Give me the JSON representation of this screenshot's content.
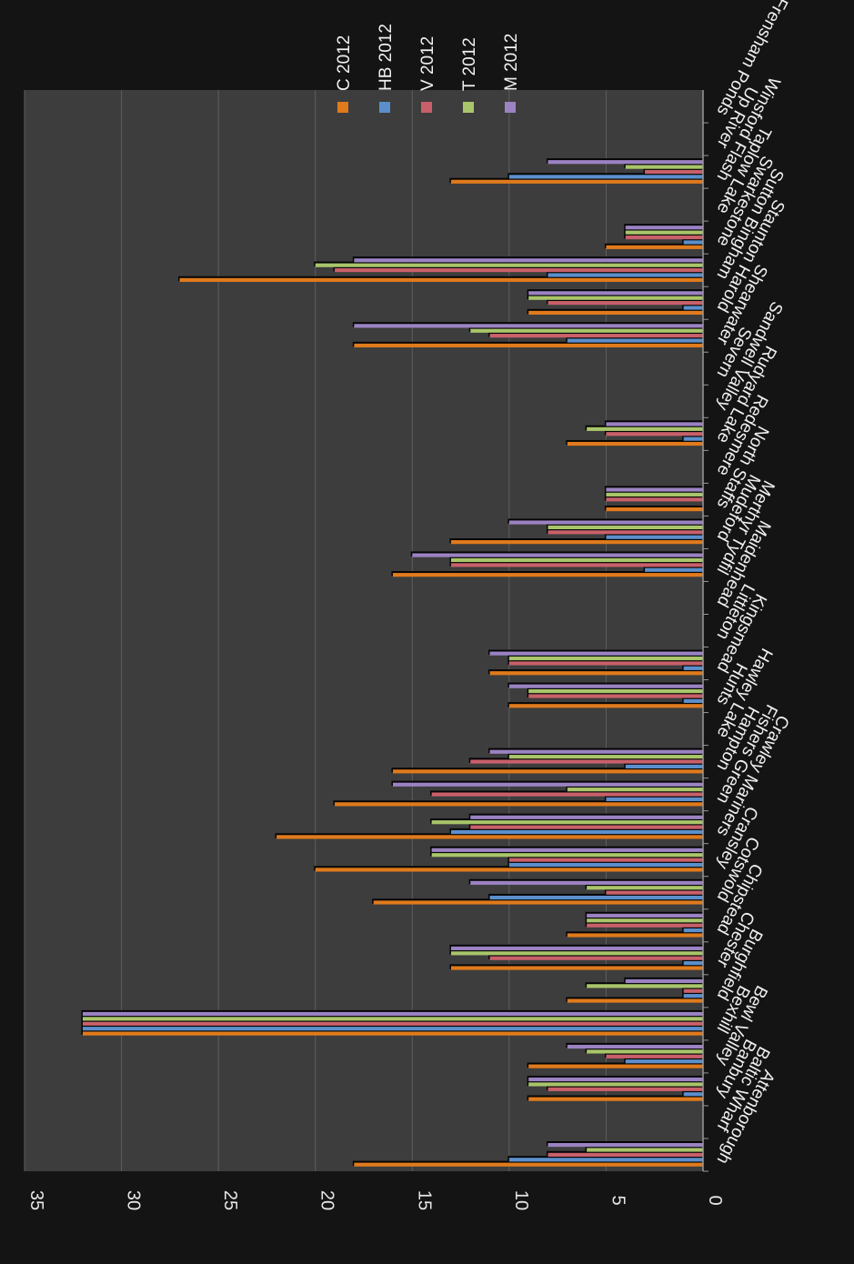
{
  "chart_data": {
    "type": "bar",
    "orientation": "horizontal",
    "ylim": [
      0,
      35
    ],
    "yticks": [
      "0",
      "5",
      "10",
      "15",
      "20",
      "25",
      "30",
      "35"
    ],
    "grid": true,
    "legend_position": "top-right",
    "categories": [
      "Attenborough",
      "Baltic Wharf",
      "Banbury",
      "Bewl Valley",
      "Bexhill",
      "Burghfield",
      "Chester",
      "Chipstead",
      "Cotswold",
      "Cransley",
      "Crawley Mariners",
      "Fishers Green",
      "Hampton",
      "Hawley Lake",
      "Hunts",
      "Kingsmead",
      "Littleton",
      "Maidenhead",
      "Merthyr Tydfil",
      "Mudeford",
      "North Staffs",
      "Redesmere",
      "Rudyard Lake",
      "Sandwell Valley",
      "Severn",
      "Shearwater",
      "Staunton Harold",
      "Sutton Bingham",
      "Swarkestone",
      "Taplow Lake",
      "Winsford Flash",
      "Up River",
      "Frensham Ponds"
    ],
    "series": [
      {
        "name": "C 2012",
        "color": "#e07a1c",
        "values": [
          18,
          0,
          9,
          9,
          32,
          7,
          13,
          7,
          17,
          20,
          22,
          19,
          16,
          0,
          10,
          11,
          0,
          0,
          16,
          13,
          5,
          0,
          7,
          0,
          0,
          18,
          9,
          27,
          5,
          0,
          13,
          0,
          0
        ]
      },
      {
        "name": "HB 2012",
        "color": "#5b8fcc",
        "values": [
          10,
          0,
          1,
          4,
          32,
          1,
          1,
          1,
          11,
          10,
          13,
          5,
          4,
          0,
          1,
          1,
          0,
          0,
          3,
          5,
          0,
          0,
          1,
          0,
          0,
          7,
          1,
          8,
          1,
          0,
          10,
          0,
          0
        ]
      },
      {
        "name": "V 2012",
        "color": "#c8606a",
        "values": [
          8,
          0,
          8,
          5,
          32,
          1,
          11,
          6,
          5,
          10,
          12,
          14,
          12,
          0,
          9,
          10,
          0,
          0,
          13,
          8,
          5,
          0,
          5,
          0,
          0,
          11,
          8,
          19,
          4,
          0,
          3,
          0,
          0
        ]
      },
      {
        "name": "T 2012",
        "color": "#a9c56a",
        "values": [
          6,
          0,
          9,
          6,
          32,
          6,
          13,
          6,
          6,
          14,
          14,
          7,
          10,
          0,
          9,
          10,
          0,
          0,
          13,
          8,
          5,
          0,
          6,
          0,
          0,
          12,
          9,
          20,
          4,
          0,
          4,
          0,
          0
        ]
      },
      {
        "name": "M 2012",
        "color": "#9b82c2",
        "values": [
          8,
          0,
          9,
          7,
          32,
          4,
          13,
          6,
          12,
          14,
          12,
          16,
          11,
          0,
          10,
          11,
          0,
          0,
          15,
          10,
          5,
          0,
          5,
          0,
          0,
          18,
          9,
          18,
          4,
          0,
          8,
          0,
          0
        ]
      }
    ]
  }
}
